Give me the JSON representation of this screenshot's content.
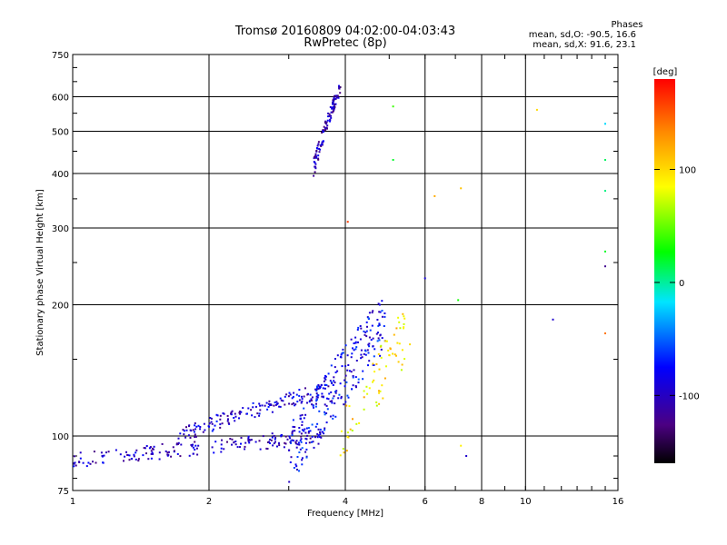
{
  "chart_data": {
    "type": "scatter",
    "title": "Tromsø 20160809 04:02:00-04:03:43",
    "subtitle": "RwPretec (8p)",
    "xlabel": "Frequency [MHz]",
    "ylabel": "Stationary phase Virtual Height [km]",
    "x_scale": "log",
    "y_scale": "log",
    "xlim": [
      1,
      16
    ],
    "ylim": [
      75,
      750
    ],
    "x_ticks": [
      1,
      2,
      4,
      6,
      8,
      10,
      16
    ],
    "x_tick_labels": [
      "1",
      "2",
      "4",
      "6",
      "8",
      "10",
      "16"
    ],
    "y_ticks": [
      75,
      100,
      200,
      300,
      400,
      500,
      600,
      750
    ],
    "y_tick_labels": [
      "75",
      "100",
      "200",
      "300",
      "400",
      "500",
      "600",
      "750"
    ],
    "grid": true,
    "legend": {
      "title": "Phases",
      "lines": [
        "mean, sd,O: -90.5, 16.6",
        "mean, sd,X:  91.6, 23.1"
      ],
      "placement": "top-right"
    },
    "colorbar": {
      "label": "[deg]",
      "min": -160,
      "max": 180,
      "ticks": [
        100,
        0,
        -100
      ],
      "tick_labels": [
        "100",
        "0",
        "-100"
      ],
      "colors": [
        "#000000",
        "#4b0082",
        "#0000ff",
        "#00e5ff",
        "#00ff00",
        "#ffff00",
        "#ff8c00",
        "#ff0000"
      ]
    },
    "clusters": [
      {
        "name": "low_e_trace",
        "x_range": [
          1.0,
          3.6
        ],
        "y_range": [
          88,
          100
        ],
        "phase": -100,
        "count": 180
      },
      {
        "name": "mid_trace",
        "x_range": [
          1.7,
          3.8
        ],
        "y_range": [
          100,
          130
        ],
        "phase": -95,
        "count": 160
      },
      {
        "name": "f_trace_cloud",
        "x_range": [
          3.0,
          4.9
        ],
        "y_range": [
          95,
          190
        ],
        "phase": -80,
        "count": 260
      },
      {
        "name": "x_mode_cloud",
        "x_range": [
          3.9,
          5.6
        ],
        "y_range": [
          105,
          185
        ],
        "phase": 95,
        "count": 70
      },
      {
        "name": "high_trace",
        "x_range": [
          3.4,
          3.9
        ],
        "y_range": [
          390,
          650
        ],
        "phase": -105,
        "count": 110
      }
    ],
    "scattered_points": [
      {
        "x": 5.1,
        "y": 570,
        "phase": 40
      },
      {
        "x": 5.1,
        "y": 430,
        "phase": 20
      },
      {
        "x": 4.05,
        "y": 310,
        "phase": 160
      },
      {
        "x": 6.3,
        "y": 355,
        "phase": 120
      },
      {
        "x": 7.2,
        "y": 370,
        "phase": 110
      },
      {
        "x": 6.0,
        "y": 230,
        "phase": -90
      },
      {
        "x": 7.1,
        "y": 205,
        "phase": 30
      },
      {
        "x": 7.2,
        "y": 95,
        "phase": 90
      },
      {
        "x": 7.4,
        "y": 90,
        "phase": -95
      },
      {
        "x": 10.6,
        "y": 560,
        "phase": 100
      },
      {
        "x": 11.5,
        "y": 185,
        "phase": -95
      },
      {
        "x": 15.0,
        "y": 520,
        "phase": -20
      },
      {
        "x": 15.0,
        "y": 430,
        "phase": 10
      },
      {
        "x": 15.0,
        "y": 365,
        "phase": 5
      },
      {
        "x": 15.0,
        "y": 265,
        "phase": 20
      },
      {
        "x": 15.0,
        "y": 245,
        "phase": -120
      },
      {
        "x": 15.0,
        "y": 172,
        "phase": 140
      }
    ]
  }
}
